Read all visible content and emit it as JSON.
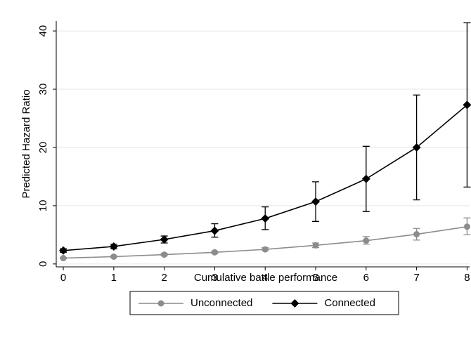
{
  "chart_data": {
    "type": "line",
    "x_label": "Cumulative battle performance",
    "y_label": "Predicted Hazard Ratio",
    "x": [
      0,
      1,
      2,
      3,
      4,
      5,
      6,
      7,
      8
    ],
    "series": [
      {
        "name": "Unconnected",
        "color": "#8c8c8c",
        "marker": "circle",
        "values": [
          1.0,
          1.25,
          1.6,
          2.0,
          2.5,
          3.2,
          4.0,
          5.1,
          6.4
        ],
        "lower": [
          0.9,
          1.1,
          1.4,
          1.8,
          2.3,
          2.8,
          3.4,
          4.1,
          5.0
        ],
        "upper": [
          1.1,
          1.4,
          1.8,
          2.2,
          2.8,
          3.6,
          4.7,
          6.1,
          7.9
        ]
      },
      {
        "name": "Connected",
        "color": "#000000",
        "marker": "diamond",
        "values": [
          2.3,
          3.0,
          4.2,
          5.7,
          7.8,
          10.7,
          14.6,
          20.0,
          27.3
        ],
        "lower": [
          2.0,
          2.6,
          3.6,
          4.6,
          5.9,
          7.3,
          9.0,
          11.0,
          13.2
        ],
        "upper": [
          2.6,
          3.4,
          4.8,
          6.9,
          9.8,
          14.1,
          20.2,
          29.0,
          41.4
        ]
      }
    ],
    "xlim": [
      -0.14,
      8.05
    ],
    "ylim": [
      -0.5,
      41.7
    ],
    "xticks": [
      0,
      1,
      2,
      3,
      4,
      5,
      6,
      7,
      8
    ],
    "yticks": [
      0,
      10,
      20,
      30,
      40
    ],
    "grid": true,
    "legend": "bottom"
  }
}
